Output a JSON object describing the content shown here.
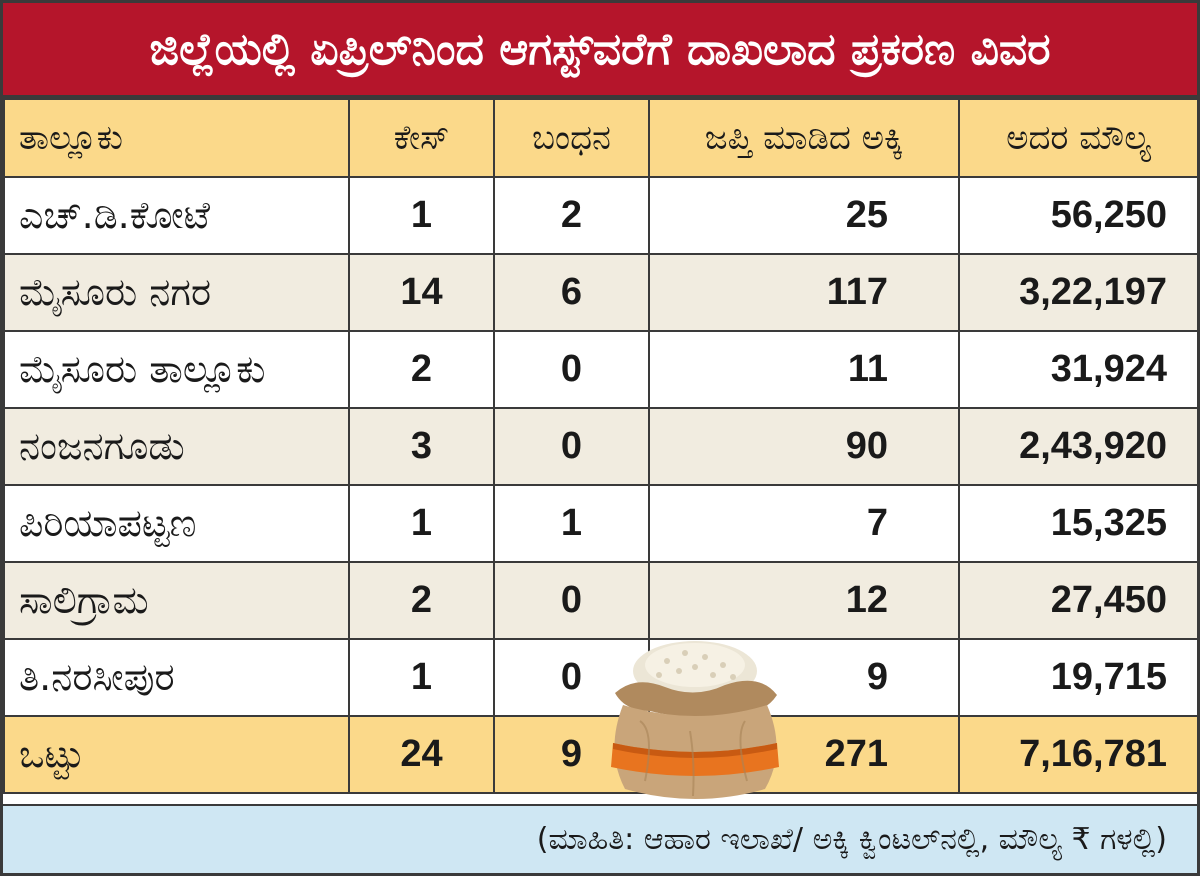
{
  "title": "ಜಿಲ್ಲೆಯಲ್ಲಿ ಏಪ್ರಿಲ್‌ನಿಂದ ಆಗಸ್ಟ್‌ವರೆಗೆ ದಾಖಲಾದ ಪ್ರಕರಣ ವಿವರ",
  "table": {
    "headers": [
      "ತಾಲ್ಲೂಕು",
      "ಕೇಸ್",
      "ಬಂಧನ",
      "ಜಪ್ತಿ ಮಾಡಿದ ಅಕ್ಕಿ",
      "ಅದರ ಮೌಲ್ಯ"
    ],
    "rows": [
      {
        "taluk": "ಎಚ್.ಡಿ.ಕೋಟೆ",
        "cases": "1",
        "arrests": "2",
        "rice": "25",
        "value": "56,250"
      },
      {
        "taluk": "ಮೈಸೂರು ನಗರ",
        "cases": "14",
        "arrests": "6",
        "rice": "117",
        "value": "3,22,197"
      },
      {
        "taluk": "ಮೈಸೂರು ತಾಲ್ಲೂಕು",
        "cases": "2",
        "arrests": "0",
        "rice": "11",
        "value": "31,924"
      },
      {
        "taluk": "ನಂಜನಗೂಡು",
        "cases": "3",
        "arrests": "0",
        "rice": "90",
        "value": "2,43,920"
      },
      {
        "taluk": "ಪಿರಿಯಾಪಟ್ಟಣ",
        "cases": "1",
        "arrests": "1",
        "rice": "7",
        "value": "15,325"
      },
      {
        "taluk": "ಸಾಲಿಗ್ರಾಮ",
        "cases": "2",
        "arrests": "0",
        "rice": "12",
        "value": "27,450"
      },
      {
        "taluk": "ತಿ.ನರಸೀಪುರ",
        "cases": "1",
        "arrests": "0",
        "rice": "9",
        "value": "19,715"
      }
    ],
    "total": {
      "taluk": "ಒಟ್ಟು",
      "cases": "24",
      "arrests": "9",
      "rice": "271",
      "value": "7,16,781"
    }
  },
  "footer": "(ಮಾಹಿತಿ: ಆಹಾರ ಇಲಾಖೆ/ ಅಕ್ಕಿ ಕ್ವಿಂಟಲ್‌ನಲ್ಲಿ, ಮೌಲ್ಯ ₹ ಗಳಲ್ಲಿ)",
  "colors": {
    "title_bg": "#b5152b",
    "header_bg": "#fbd98a",
    "alt_row_bg": "#f1ece0",
    "footer_bg": "#cfe7f3"
  },
  "icons": [
    "rice-sack-icon"
  ]
}
